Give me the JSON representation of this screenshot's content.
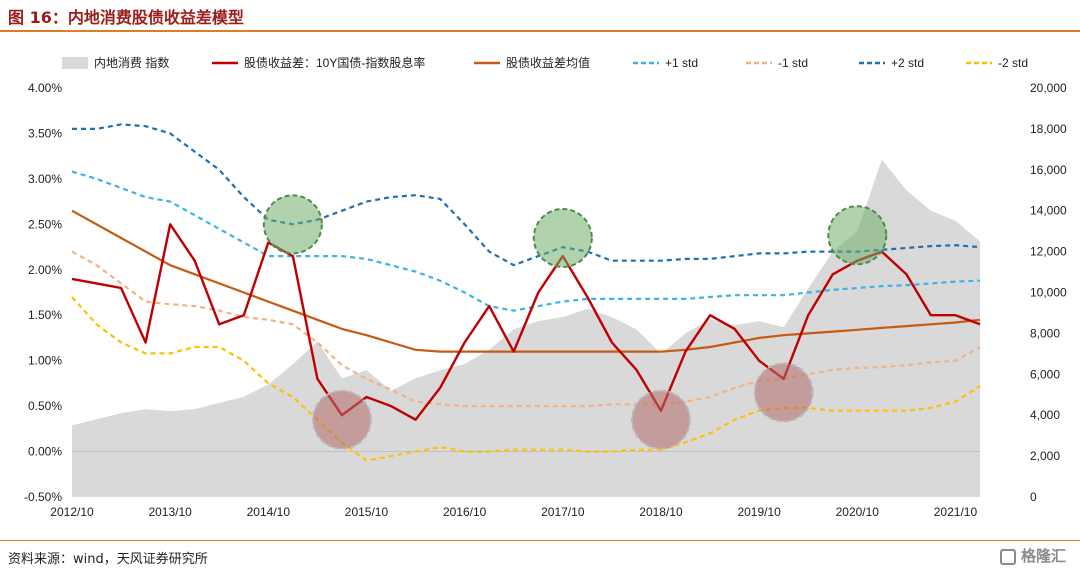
{
  "header": {
    "title": "图 16：内地消费股债收益差模型"
  },
  "footer": {
    "source": "资料来源：wind，天风证券研究所",
    "watermark": "格隆汇"
  },
  "colors": {
    "index_area": "#d9d9d9",
    "spread": "#c00000",
    "mean": "#c55a11",
    "plus1": "#3ab4e8",
    "minus1": "#f4b183",
    "plus2": "#1f6fb3",
    "minus2": "#ffc000",
    "circle_green": "#70ad6a",
    "circle_red": "#b36a6a"
  },
  "chart_data": {
    "type": "line",
    "legend": [
      {
        "key": "index",
        "label": "内地消费 指数",
        "style": "area"
      },
      {
        "key": "spread",
        "label": "股债收益差：10Y国债-指数股息率",
        "style": "solid"
      },
      {
        "key": "mean",
        "label": "股债收益差均值",
        "style": "solid"
      },
      {
        "key": "plus1",
        "label": "+1 std",
        "style": "dashed"
      },
      {
        "key": "minus1",
        "label": "-1 std",
        "style": "dashed"
      },
      {
        "key": "plus2",
        "label": "+2 std",
        "style": "dashed"
      },
      {
        "key": "minus2",
        "label": "-2 std",
        "style": "dashed"
      }
    ],
    "x_labels": [
      "2012/10",
      "2013/10",
      "2014/10",
      "2015/10",
      "2016/10",
      "2017/10",
      "2018/10",
      "2019/10",
      "2020/10",
      "2021/10"
    ],
    "y_left": {
      "min": -0.5,
      "max": 4.0,
      "ticks": [
        "-0.50%",
        "0.00%",
        "0.50%",
        "1.00%",
        "1.50%",
        "2.00%",
        "2.50%",
        "3.00%",
        "3.50%",
        "4.00%"
      ]
    },
    "y_right": {
      "min": 0,
      "max": 20000,
      "ticks": [
        "0",
        "2,000",
        "4,000",
        "6,000",
        "8,000",
        "10,000",
        "12,000",
        "14,000",
        "16,000",
        "18,000",
        "20,000"
      ]
    },
    "dates": [
      "2012Q4",
      "2013Q1",
      "2013Q2",
      "2013Q3",
      "2013Q4",
      "2014Q1",
      "2014Q2",
      "2014Q3",
      "2014Q4",
      "2015Q1",
      "2015Q2",
      "2015Q3",
      "2015Q4",
      "2016Q1",
      "2016Q2",
      "2016Q3",
      "2016Q4",
      "2017Q1",
      "2017Q2",
      "2017Q3",
      "2017Q4",
      "2018Q1",
      "2018Q2",
      "2018Q3",
      "2018Q4",
      "2019Q1",
      "2019Q2",
      "2019Q3",
      "2019Q4",
      "2020Q1",
      "2020Q2",
      "2020Q3",
      "2020Q4",
      "2021Q1",
      "2021Q2",
      "2021Q3",
      "2021Q4",
      "2022Q1"
    ],
    "series": [
      {
        "key": "index",
        "values": [
          3500,
          3800,
          4100,
          4300,
          4200,
          4300,
          4600,
          4900,
          5500,
          6500,
          7600,
          5800,
          6200,
          5200,
          5800,
          6200,
          6500,
          7200,
          8200,
          8600,
          8800,
          9200,
          8800,
          8200,
          7000,
          8000,
          8700,
          8400,
          8600,
          8300,
          10200,
          12000,
          13000,
          16500,
          15000,
          14000,
          13500,
          12500
        ]
      },
      {
        "key": "spread",
        "values": [
          1.9,
          1.85,
          1.8,
          1.2,
          2.5,
          2.1,
          1.4,
          1.5,
          2.3,
          2.15,
          0.8,
          0.4,
          0.6,
          0.5,
          0.35,
          0.7,
          1.2,
          1.6,
          1.1,
          1.75,
          2.15,
          1.7,
          1.2,
          0.9,
          0.45,
          1.1,
          1.5,
          1.35,
          1.0,
          0.8,
          1.5,
          1.95,
          2.1,
          2.2,
          1.95,
          1.5,
          1.5,
          1.4
        ]
      },
      {
        "key": "mean",
        "values": [
          2.65,
          2.5,
          2.35,
          2.2,
          2.05,
          1.95,
          1.85,
          1.75,
          1.65,
          1.55,
          1.45,
          1.35,
          1.28,
          1.2,
          1.12,
          1.1,
          1.1,
          1.1,
          1.1,
          1.1,
          1.1,
          1.1,
          1.1,
          1.1,
          1.1,
          1.12,
          1.15,
          1.2,
          1.25,
          1.28,
          1.3,
          1.32,
          1.34,
          1.36,
          1.38,
          1.4,
          1.42,
          1.45
        ]
      },
      {
        "key": "plus1",
        "values": [
          3.08,
          3.0,
          2.9,
          2.8,
          2.75,
          2.6,
          2.45,
          2.3,
          2.15,
          2.15,
          2.15,
          2.15,
          2.12,
          2.05,
          1.98,
          1.88,
          1.75,
          1.6,
          1.55,
          1.6,
          1.65,
          1.68,
          1.68,
          1.68,
          1.68,
          1.68,
          1.7,
          1.72,
          1.72,
          1.72,
          1.75,
          1.78,
          1.8,
          1.82,
          1.83,
          1.85,
          1.87,
          1.88
        ]
      },
      {
        "key": "minus1",
        "values": [
          2.2,
          2.05,
          1.85,
          1.65,
          1.62,
          1.6,
          1.55,
          1.48,
          1.45,
          1.4,
          1.2,
          0.95,
          0.8,
          0.68,
          0.55,
          0.52,
          0.5,
          0.5,
          0.5,
          0.5,
          0.5,
          0.5,
          0.52,
          0.52,
          0.52,
          0.55,
          0.6,
          0.7,
          0.78,
          0.8,
          0.85,
          0.9,
          0.92,
          0.93,
          0.95,
          0.98,
          1.0,
          1.15
        ]
      },
      {
        "key": "plus2",
        "values": [
          3.55,
          3.55,
          3.6,
          3.58,
          3.5,
          3.3,
          3.1,
          2.8,
          2.55,
          2.5,
          2.55,
          2.65,
          2.75,
          2.8,
          2.82,
          2.78,
          2.5,
          2.2,
          2.05,
          2.15,
          2.25,
          2.2,
          2.1,
          2.1,
          2.1,
          2.12,
          2.12,
          2.15,
          2.18,
          2.18,
          2.2,
          2.2,
          2.2,
          2.22,
          2.24,
          2.26,
          2.27,
          2.25
        ]
      },
      {
        "key": "minus2",
        "values": [
          1.7,
          1.4,
          1.2,
          1.08,
          1.08,
          1.15,
          1.15,
          1.0,
          0.75,
          0.6,
          0.35,
          0.1,
          -0.1,
          -0.05,
          0.0,
          0.05,
          0.0,
          0.0,
          0.02,
          0.02,
          0.02,
          0.0,
          0.0,
          0.02,
          0.02,
          0.1,
          0.2,
          0.35,
          0.45,
          0.48,
          0.48,
          0.45,
          0.45,
          0.45,
          0.45,
          0.48,
          0.55,
          0.72
        ]
      }
    ],
    "annotations": [
      {
        "type": "circle",
        "color": "green",
        "x": "2015Q1",
        "y": 2.5
      },
      {
        "type": "circle",
        "color": "green",
        "x": "2017Q4",
        "y": 2.35
      },
      {
        "type": "circle",
        "color": "green",
        "x": "2020Q4",
        "y": 2.38
      },
      {
        "type": "circle",
        "color": "red",
        "x": "2015Q3",
        "y": 0.35
      },
      {
        "type": "circle",
        "color": "red",
        "x": "2018Q4",
        "y": 0.35
      },
      {
        "type": "circle",
        "color": "red",
        "x": "2020Q1",
        "y": 0.65
      }
    ]
  }
}
